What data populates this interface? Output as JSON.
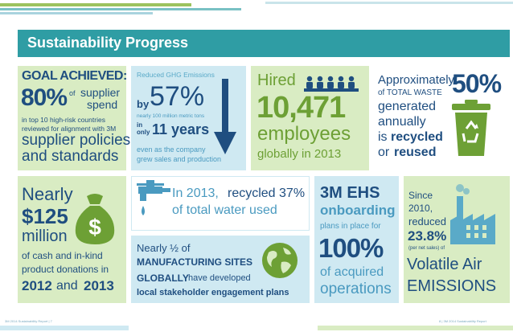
{
  "banner": {
    "title": "Sustainability Progress"
  },
  "supplier": {
    "line1": "GOAL ACHIEVED:",
    "percent": "80%",
    "of": "of",
    "supplier": "supplier",
    "spend": "spend",
    "line3": "in top 10 high-risk countries",
    "line4": "reviewed for alignment with 3M",
    "line5": "supplier policies",
    "line6": "and standards"
  },
  "ghg": {
    "heading": "Reduced GHG Emissions",
    "by": "by",
    "percent": "57%",
    "note": "nearly 100 million metric tons",
    "in": "in",
    "only": "only",
    "years": "11 years",
    "line1": "even as the company",
    "line2": "grew sales and production"
  },
  "hired": {
    "label": "Hired",
    "number": "10,471",
    "employees": "employees",
    "globally": "globally in 2013"
  },
  "waste": {
    "approx": "Approximately",
    "percent": "50%",
    "of_total": "of TOTAL WASTE",
    "generated": "generated",
    "annually": "annually",
    "is": "is",
    "recycled": "recycled",
    "or": "or",
    "reused": "reused"
  },
  "donations": {
    "nearly": "Nearly",
    "amount": "$125",
    "million": "million",
    "line1": "of cash and in-kind",
    "line2": "product donations in",
    "y1": "2012",
    "and": "and",
    "y2": "2013"
  },
  "water": {
    "line1a": "In 2013,",
    "line1b": "recycled 37%",
    "line2": "of total water used"
  },
  "sites": {
    "line1": "Nearly ½ of",
    "line2": "MANUFACTURING SITES",
    "line3a": "GLOBALLY",
    "line3b": "have developed",
    "line4": "local stakeholder engagement plans"
  },
  "ehs": {
    "title": "3M EHS",
    "onboarding": "onboarding",
    "plans": "plans in place for",
    "percent": "100%",
    "of_acquired": "of acquired",
    "operations": "operations"
  },
  "voc": {
    "since": "Since",
    "year": "2010,",
    "reduced": "reduced",
    "percent": "23.8%",
    "per": "(per net sales) of",
    "volatile": "Volatile Air",
    "emissions": "EMISSIONS"
  },
  "footer": {
    "left": "3M 2014 Sustainability Report  |  7",
    "right": "8  |  3M 2014 Sustainability Report"
  },
  "colors": {
    "teal": "#2f9da4",
    "navy": "#1f4e80",
    "green": "#6da035",
    "light_green": "#d9ecc3",
    "light_blue": "#cfe9f2"
  }
}
